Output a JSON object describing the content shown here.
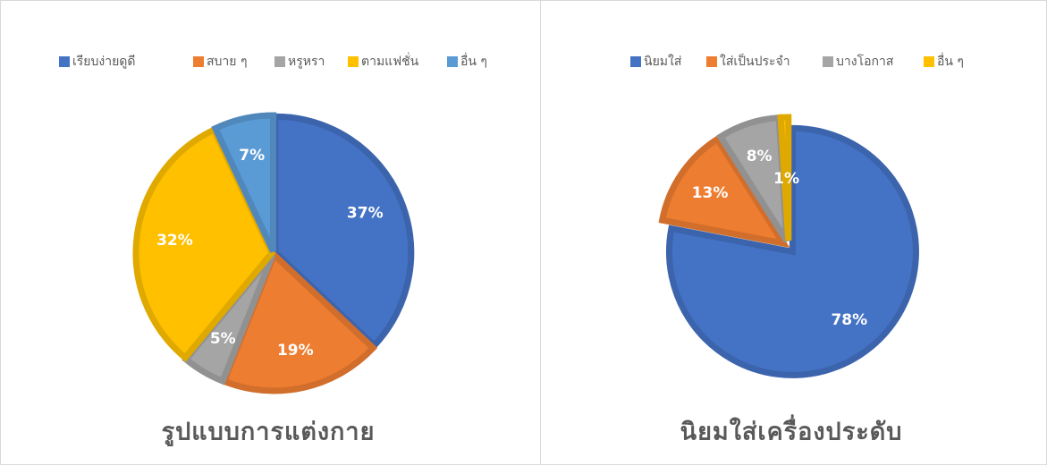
{
  "chart_data": [
    {
      "type": "pie",
      "title": "รูปแบบการแต่งกาย",
      "categories": [
        "เรียบง่ายดูดี",
        "สบาย ๆ",
        "หรูหรา",
        "ตามแฟชั่น",
        "อื่น ๆ"
      ],
      "values": [
        37,
        19,
        5,
        32,
        7
      ],
      "value_labels": [
        "37%",
        "19%",
        "5%",
        "32%",
        "7%"
      ],
      "colors": [
        "#4472c4",
        "#ed7d31",
        "#a5a5a5",
        "#ffc000",
        "#5b9bd5"
      ],
      "legend": "top"
    },
    {
      "type": "pie",
      "title": "นิยมใส่เครื่องประดับ",
      "categories": [
        "นิยมใส่",
        "ใส่เป็นประจำ",
        "บางโอกาส",
        "อื่น ๆ"
      ],
      "values": [
        78,
        13,
        8,
        1
      ],
      "value_labels": [
        "78%",
        "13%",
        "8%",
        "1%"
      ],
      "colors": [
        "#4472c4",
        "#ed7d31",
        "#a5a5a5",
        "#ffc000"
      ],
      "legend": "top"
    }
  ]
}
